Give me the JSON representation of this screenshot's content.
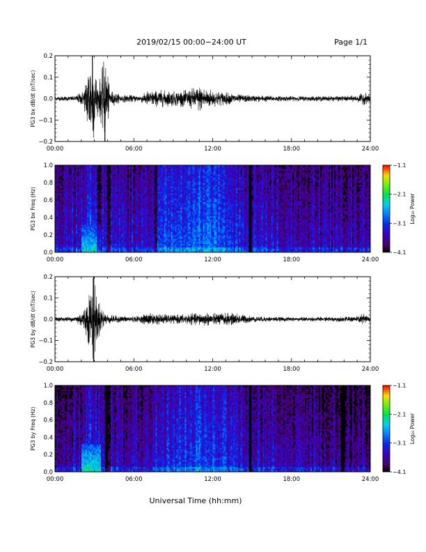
{
  "header": {
    "title": "2019/02/15  00:00−24:00 UT",
    "page": "Page 1/1"
  },
  "footer": {
    "xlabel": "Universal Time (hh:mm)"
  },
  "chart_data": [
    {
      "type": "line",
      "ylabel": "PG3 bx dB/dt (nT/sec)",
      "xlim": [
        0,
        24
      ],
      "ylim": [
        -0.2,
        0.2
      ],
      "x_tick_labels": [
        "00:00",
        "06:00",
        "12:00",
        "18:00",
        "24:00"
      ],
      "y_tick_labels": [
        "−0.2",
        "−0.1",
        "0.0",
        "0.1",
        "0.2"
      ],
      "envelope_x_hours": [
        0,
        1.5,
        2.2,
        2.6,
        2.9,
        3.3,
        3.8,
        4.2,
        5,
        6.5,
        7,
        8,
        9,
        10,
        10.5,
        11,
        11.5,
        12,
        12.5,
        13,
        14,
        15,
        16,
        17,
        18,
        20,
        22,
        23,
        23.5,
        24
      ],
      "envelope_amplitude": [
        0.01,
        0.012,
        0.04,
        0.2,
        0.2,
        0.06,
        0.2,
        0.04,
        0.018,
        0.015,
        0.035,
        0.04,
        0.035,
        0.04,
        0.05,
        0.06,
        0.05,
        0.04,
        0.035,
        0.03,
        0.02,
        0.015,
        0.015,
        0.012,
        0.012,
        0.012,
        0.012,
        0.015,
        0.03,
        0.02
      ],
      "spikes": [
        {
          "x": 3.8,
          "y": -0.2
        },
        {
          "x": 2.9,
          "y": -0.15
        },
        {
          "x": 2.85,
          "y": 0.2
        }
      ]
    },
    {
      "type": "heatmap",
      "ylabel": "PG3 bx Freq (Hz)",
      "xlim": [
        0,
        24
      ],
      "ylim": [
        0.0,
        1.0
      ],
      "x_tick_labels": [
        "00:00",
        "06:00",
        "12:00",
        "18:00",
        "24:00"
      ],
      "y_tick_labels": [
        "0.0",
        "0.2",
        "0.4",
        "0.6",
        "0.8",
        "1.0"
      ],
      "colorbar": {
        "label": "Log₁₀ Power",
        "ticks": [
          "−4.1",
          "−3.1",
          "−2.1",
          "−1.1"
        ],
        "range": [
          -4.1,
          -1.1
        ]
      },
      "data_gaps_hours": [
        [
          14.75,
          14.95
        ]
      ],
      "dark_bands_hours": [
        [
          3.2,
          3.5
        ],
        [
          3.9,
          4.2
        ],
        [
          7.5,
          7.8
        ]
      ],
      "activity_profile_x_hours": [
        0,
        2,
        2.8,
        3.5,
        5,
        7,
        8,
        9,
        10,
        11,
        12,
        13,
        14,
        15,
        16,
        18,
        20,
        22,
        24
      ],
      "activity_profile_level": [
        -3.5,
        -3.3,
        -3.0,
        -3.3,
        -3.4,
        -3.4,
        -3.1,
        -3.0,
        -2.9,
        -2.85,
        -2.9,
        -3.0,
        -3.2,
        -3.35,
        -3.3,
        -3.4,
        -3.45,
        -3.5,
        -3.5
      ],
      "low_freq_peak": {
        "x_hours": [
          2.0,
          3.5
        ],
        "level": -2.4
      }
    },
    {
      "type": "line",
      "ylabel": "PG3 by dB/dt (nT/sec)",
      "xlim": [
        0,
        24
      ],
      "ylim": [
        -0.2,
        0.2
      ],
      "x_tick_labels": [
        "00:00",
        "06:00",
        "12:00",
        "18:00",
        "24:00"
      ],
      "y_tick_labels": [
        "−0.2",
        "−0.1",
        "0.0",
        "0.1",
        "0.2"
      ],
      "envelope_x_hours": [
        0,
        1.5,
        2.2,
        2.6,
        2.9,
        3.3,
        3.8,
        4.2,
        5,
        6.5,
        7,
        8,
        9,
        10,
        11,
        12,
        13,
        14,
        15,
        16,
        18,
        20,
        22,
        23,
        23.5,
        24
      ],
      "envelope_amplitude": [
        0.01,
        0.012,
        0.05,
        0.13,
        0.2,
        0.09,
        0.03,
        0.02,
        0.015,
        0.015,
        0.03,
        0.025,
        0.02,
        0.025,
        0.03,
        0.03,
        0.03,
        0.025,
        0.015,
        0.012,
        0.01,
        0.01,
        0.012,
        0.015,
        0.028,
        0.015
      ],
      "spikes": [
        {
          "x": 2.95,
          "y": 0.2
        },
        {
          "x": 2.95,
          "y": -0.2
        }
      ]
    },
    {
      "type": "heatmap",
      "ylabel": "PG3 by Freq (Hz)",
      "xlim": [
        0,
        24
      ],
      "ylim": [
        0.0,
        1.0
      ],
      "x_tick_labels": [
        "00:00",
        "06:00",
        "12:00",
        "18:00",
        "24:00"
      ],
      "y_tick_labels": [
        "0.0",
        "0.2",
        "0.4",
        "0.6",
        "0.8",
        "1.0"
      ],
      "colorbar": {
        "label": "Log₁₀ Power",
        "ticks": [
          "−4.1",
          "−3.1",
          "−2.1",
          "−1.1"
        ],
        "range": [
          -4.1,
          -1.1
        ]
      },
      "data_gaps_hours": [
        [
          14.75,
          14.95
        ]
      ],
      "dark_bands_hours": [
        [
          3.8,
          4.2
        ],
        [
          21.8,
          22.1
        ]
      ],
      "activity_profile_x_hours": [
        0,
        2,
        2.8,
        3.5,
        5,
        7,
        8,
        9,
        10,
        11,
        12,
        13,
        14,
        15,
        16,
        18,
        20,
        22,
        24
      ],
      "activity_profile_level": [
        -3.6,
        -3.4,
        -3.1,
        -3.4,
        -3.5,
        -3.5,
        -3.2,
        -3.15,
        -3.05,
        -3.0,
        -3.05,
        -3.1,
        -3.3,
        -3.45,
        -3.4,
        -3.55,
        -3.6,
        -3.65,
        -3.65
      ],
      "low_freq_peak": {
        "x_hours": [
          2.0,
          3.5
        ],
        "level": -2.3
      }
    }
  ]
}
